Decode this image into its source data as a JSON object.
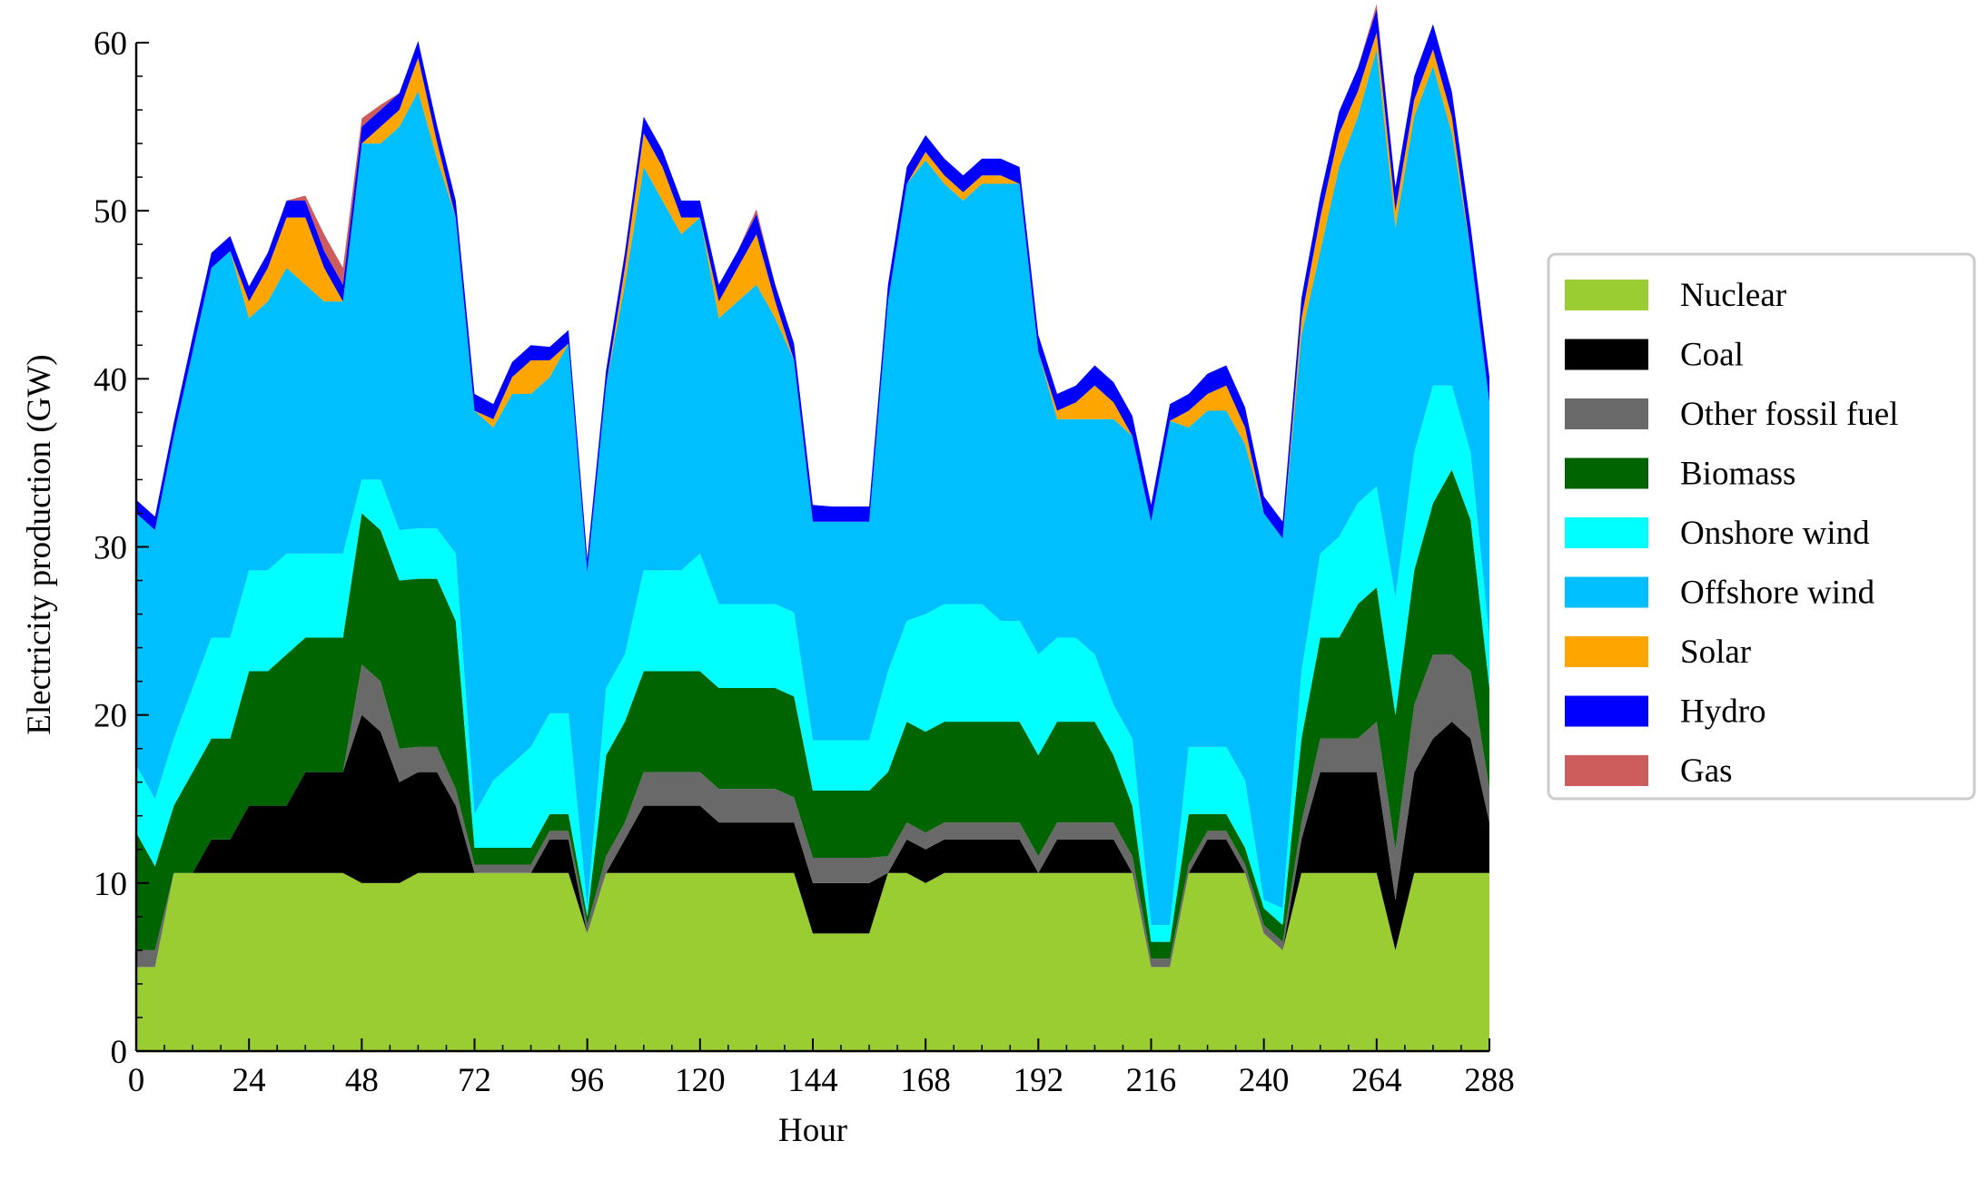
{
  "chart_data": {
    "type": "area",
    "stacked": true,
    "xlabel": "Hour",
    "ylabel": "Electricity production (GW)",
    "xlim": [
      0,
      288
    ],
    "ylim": [
      0,
      60
    ],
    "xticks": [
      0,
      24,
      48,
      72,
      96,
      120,
      144,
      168,
      192,
      216,
      240,
      264,
      288
    ],
    "yticks": [
      0,
      10,
      20,
      30,
      40,
      50,
      60
    ],
    "grid": false,
    "legend_position": "right",
    "sample_hours": [
      0,
      4,
      8,
      12,
      16,
      20,
      24,
      28,
      32,
      36,
      40,
      44,
      48,
      52,
      56,
      60,
      64,
      68,
      72,
      76,
      80,
      84,
      88,
      92,
      96,
      100,
      104,
      108,
      112,
      116,
      120,
      124,
      128,
      132,
      136,
      140,
      144,
      148,
      152,
      156,
      160,
      164,
      168,
      172,
      176,
      180,
      184,
      188,
      192,
      196,
      200,
      204,
      208,
      212,
      216,
      220,
      224,
      228,
      232,
      236,
      240,
      244,
      248,
      252,
      256,
      260,
      264,
      268,
      272,
      276,
      280,
      284,
      288
    ],
    "series": [
      {
        "name": "Nuclear",
        "color": "#9ACD32",
        "values": [
          5,
          5,
          10.6,
          10.6,
          10.6,
          10.6,
          10.6,
          10.6,
          10.6,
          10.6,
          10.6,
          10.6,
          10,
          10,
          10,
          10.6,
          10.6,
          10.6,
          10.6,
          10.6,
          10.6,
          10.6,
          10.6,
          10.6,
          7,
          10.6,
          10.6,
          10.6,
          10.6,
          10.6,
          10.6,
          10.6,
          10.6,
          10.6,
          10.6,
          10.6,
          7,
          7,
          7,
          7,
          10.6,
          10.6,
          10,
          10.6,
          10.6,
          10.6,
          10.6,
          10.6,
          10.6,
          10.6,
          10.6,
          10.6,
          10.6,
          10.6,
          5,
          5,
          10.6,
          10.6,
          10.6,
          10.6,
          7,
          6,
          10.6,
          10.6,
          10.6,
          10.6,
          10.6,
          6,
          10.6,
          10.6,
          10.6,
          10.6,
          10.6
        ]
      },
      {
        "name": "Coal",
        "color": "#000000",
        "values": [
          0,
          0,
          0,
          0,
          2,
          2,
          4,
          4,
          4,
          6,
          6,
          6,
          10,
          9,
          6,
          6,
          6,
          4,
          0,
          0,
          0,
          0,
          2,
          2,
          0,
          0,
          2,
          4,
          4,
          4,
          4,
          3,
          3,
          3,
          3,
          3,
          3,
          3,
          3,
          3,
          0,
          2,
          2,
          2,
          2,
          2,
          2,
          2,
          0,
          2,
          2,
          2,
          2,
          0,
          0,
          0,
          0,
          2,
          2,
          0,
          0,
          0,
          2,
          6,
          6,
          6,
          6,
          3,
          6,
          8,
          9,
          8,
          3
        ]
      },
      {
        "name": "Other fossil fuel",
        "color": "#696969",
        "values": [
          1,
          1,
          0,
          0,
          0,
          0,
          0,
          0,
          0,
          0,
          0,
          0,
          3,
          3,
          2,
          1.5,
          1.5,
          1,
          0.5,
          0.5,
          0.5,
          0.5,
          0.5,
          0.5,
          0.5,
          1,
          1,
          2,
          2,
          2,
          2,
          2,
          2,
          2,
          2,
          1.5,
          1.5,
          1.5,
          1.5,
          1.5,
          1,
          1,
          1,
          1,
          1,
          1,
          1,
          1,
          1,
          1,
          1,
          1,
          1,
          1,
          0.5,
          0.5,
          0.5,
          0.5,
          0.5,
          0.5,
          0.5,
          0.5,
          1,
          2,
          2,
          2,
          3,
          3,
          4,
          5,
          4,
          4,
          2
        ]
      },
      {
        "name": "Biomass",
        "color": "#006400",
        "values": [
          7,
          5,
          4,
          6,
          6,
          6,
          8,
          8,
          9,
          8,
          8,
          8,
          9,
          9,
          10,
          10,
          10,
          10,
          1,
          1,
          1,
          1,
          1,
          1,
          0.5,
          6,
          6,
          6,
          6,
          6,
          6,
          6,
          6,
          6,
          6,
          6,
          4,
          4,
          4,
          4,
          5,
          6,
          6,
          6,
          6,
          6,
          6,
          6,
          6,
          6,
          6,
          6,
          4,
          3,
          1,
          1,
          3,
          1,
          1,
          1,
          1,
          1,
          5,
          6,
          6,
          8,
          8,
          8,
          8,
          9,
          11,
          9,
          6
        ]
      },
      {
        "name": "Onshore wind",
        "color": "#00FFFF",
        "values": [
          4,
          4,
          4,
          5,
          6,
          6,
          6,
          6,
          6,
          5,
          5,
          5,
          2,
          3,
          3,
          3,
          3,
          4,
          2,
          4,
          5,
          6,
          6,
          6,
          0.5,
          4,
          4,
          6,
          6,
          6,
          7,
          5,
          5,
          5,
          5,
          5,
          3,
          3,
          3,
          3,
          6,
          6,
          7,
          7,
          7,
          7,
          6,
          6,
          6,
          5,
          5,
          4,
          3,
          4,
          1,
          1,
          4,
          4,
          4,
          4,
          0.5,
          1,
          4,
          5,
          6,
          6,
          6,
          7,
          7,
          7,
          5,
          4,
          3
        ]
      },
      {
        "name": "Offshore wind",
        "color": "#00BFFF",
        "values": [
          15,
          16,
          18,
          20,
          22,
          23,
          15,
          16,
          17,
          16,
          15,
          15,
          20,
          20,
          24,
          26,
          22,
          20,
          24,
          21,
          22,
          21,
          20,
          22,
          20,
          18,
          22,
          24,
          22,
          20,
          20,
          17,
          18,
          19,
          17,
          15,
          13,
          13,
          13,
          13,
          22,
          26,
          27,
          25,
          24,
          25,
          26,
          26,
          18,
          13,
          13,
          14,
          17,
          18,
          24,
          30,
          19,
          20,
          20,
          20,
          23,
          22,
          20,
          18,
          22,
          23,
          26,
          22,
          20,
          19,
          15,
          12,
          14
        ]
      },
      {
        "name": "Solar",
        "color": "#FFA500",
        "values": [
          0,
          0,
          0,
          0,
          0,
          0,
          1,
          2,
          3,
          4,
          2,
          0,
          0,
          1,
          1,
          2,
          1,
          0,
          0,
          0.5,
          1,
          2,
          1,
          0,
          0,
          0,
          1,
          2,
          2,
          1,
          0,
          1,
          2,
          3,
          1,
          0,
          0,
          0,
          0,
          0,
          0,
          0,
          0.5,
          0.5,
          0.5,
          0.5,
          0.5,
          0,
          0,
          0.5,
          1,
          2,
          1,
          0,
          0,
          0,
          1,
          1,
          1.5,
          1,
          0,
          0,
          1,
          2,
          2,
          1.5,
          1,
          1,
          1,
          1,
          1,
          0,
          0
        ]
      },
      {
        "name": "Hydro",
        "color": "#0000FF",
        "values": [
          0.8,
          0.8,
          0.8,
          0.9,
          0.9,
          0.9,
          0.9,
          0.9,
          1,
          1,
          1,
          1,
          1,
          1,
          1,
          1,
          1,
          1,
          1,
          0.9,
          0.9,
          0.9,
          0.8,
          0.8,
          0.8,
          0.9,
          0.9,
          1,
          1,
          1,
          1,
          1,
          1,
          1.2,
          1,
          1,
          1,
          0.9,
          0.9,
          0.9,
          1,
          1,
          1,
          1,
          1,
          1,
          1,
          1,
          1,
          1,
          1,
          1.2,
          1.2,
          1.2,
          1,
          1,
          1,
          1.2,
          1.2,
          1.2,
          1,
          1,
          1.2,
          1.3,
          1.3,
          1.4,
          1.4,
          1.4,
          1.4,
          1.5,
          1.5,
          1.5,
          1.5
        ]
      },
      {
        "name": "Gas",
        "color": "#CD5C5C",
        "values": [
          0,
          0,
          0,
          0,
          0,
          0,
          0,
          0,
          0,
          0.3,
          1,
          1,
          0.5,
          0.3,
          0,
          0,
          0,
          0,
          0,
          0,
          0,
          0,
          0,
          0,
          0,
          0,
          0,
          0,
          0,
          0,
          0,
          0,
          0,
          0.3,
          0,
          0,
          0,
          0,
          0,
          0,
          0,
          0,
          0,
          0,
          0,
          0,
          0,
          0,
          0,
          0,
          0,
          0,
          0,
          0,
          0,
          0,
          0,
          0,
          0,
          0,
          0,
          0,
          0,
          0,
          0,
          0,
          0.3,
          0,
          0,
          0,
          0,
          0,
          0
        ]
      }
    ]
  }
}
